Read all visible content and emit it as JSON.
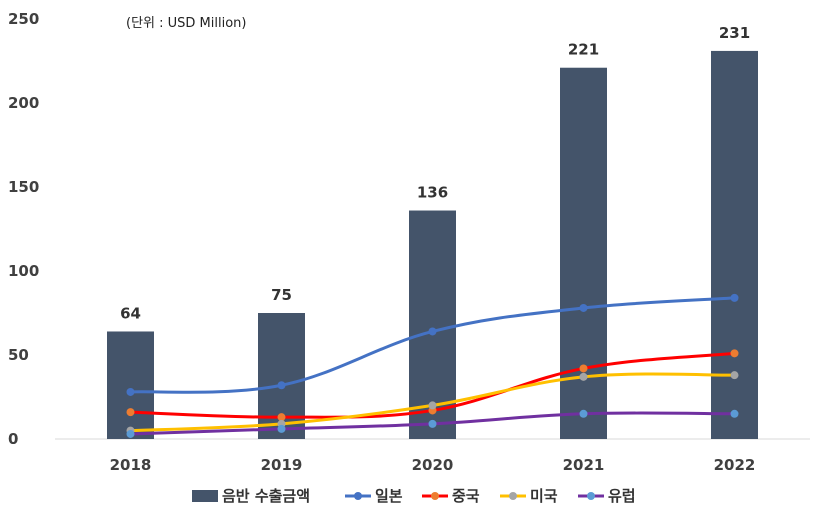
{
  "chart_data": {
    "type": "bar",
    "title": "",
    "unit_note": "(단위 : USD Million)",
    "xlabel": "",
    "ylabel": "",
    "ylim": [
      0,
      250
    ],
    "yticks": [
      0,
      50,
      100,
      150,
      200,
      250
    ],
    "ytick_labels": [
      "0",
      "50",
      "100",
      "150",
      "200",
      "250"
    ],
    "categories": [
      "2018",
      "2019",
      "2020",
      "2021",
      "2022"
    ],
    "bar_series": {
      "name": "음반 수출금액",
      "values": [
        64,
        75,
        136,
        221,
        231
      ],
      "labels": [
        "64",
        "75",
        "136",
        "221",
        "231"
      ],
      "color": "#44546a"
    },
    "line_series": [
      {
        "name": "일본",
        "values": [
          28,
          32,
          64,
          78,
          84
        ],
        "color": "#4472c4",
        "marker_color": "#4472c4"
      },
      {
        "name": "중국",
        "values": [
          16,
          13,
          17,
          42,
          51
        ],
        "color": "#ff0000",
        "marker_color": "#ed7d31"
      },
      {
        "name": "미국",
        "values": [
          5,
          9,
          20,
          37,
          38
        ],
        "color": "#ffc000",
        "marker_color": "#a5a5a5"
      },
      {
        "name": "유럽",
        "values": [
          3,
          6,
          9,
          15,
          15
        ],
        "color": "#7030a0",
        "marker_color": "#5b9bd5"
      }
    ],
    "grid": false,
    "legend_position": "bottom"
  }
}
